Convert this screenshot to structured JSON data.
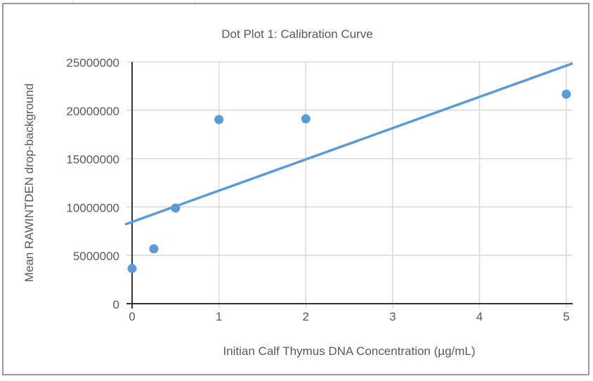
{
  "chart_data": {
    "type": "scatter",
    "title": "Dot Plot 1: Calibration Curve",
    "xlabel": "Initian Calf Thymus DNA Concentration (µg/mL)",
    "ylabel": "Mean RAWINTDEN drop-background",
    "xlim": [
      0,
      5
    ],
    "ylim": [
      0,
      25000000
    ],
    "x_ticks": [
      0,
      1,
      2,
      3,
      4,
      5
    ],
    "y_ticks": [
      0,
      5000000,
      10000000,
      15000000,
      20000000,
      25000000
    ],
    "grid": true,
    "legend": "none",
    "colors": {
      "points": "#5b9bd5",
      "trendline": "#5b9bd5",
      "grid": "#d9d9d9",
      "axis": "#333333",
      "text": "#595959"
    },
    "points": [
      {
        "x": 0,
        "y": 3630000
      },
      {
        "x": 0.25,
        "y": 5670000
      },
      {
        "x": 0.5,
        "y": 9880000
      },
      {
        "x": 1,
        "y": 19040000
      },
      {
        "x": 2,
        "y": 19110000
      },
      {
        "x": 5,
        "y": 21660000
      }
    ],
    "trendline": {
      "type": "linear",
      "slope": 3231000,
      "intercept": 8454000
    }
  }
}
